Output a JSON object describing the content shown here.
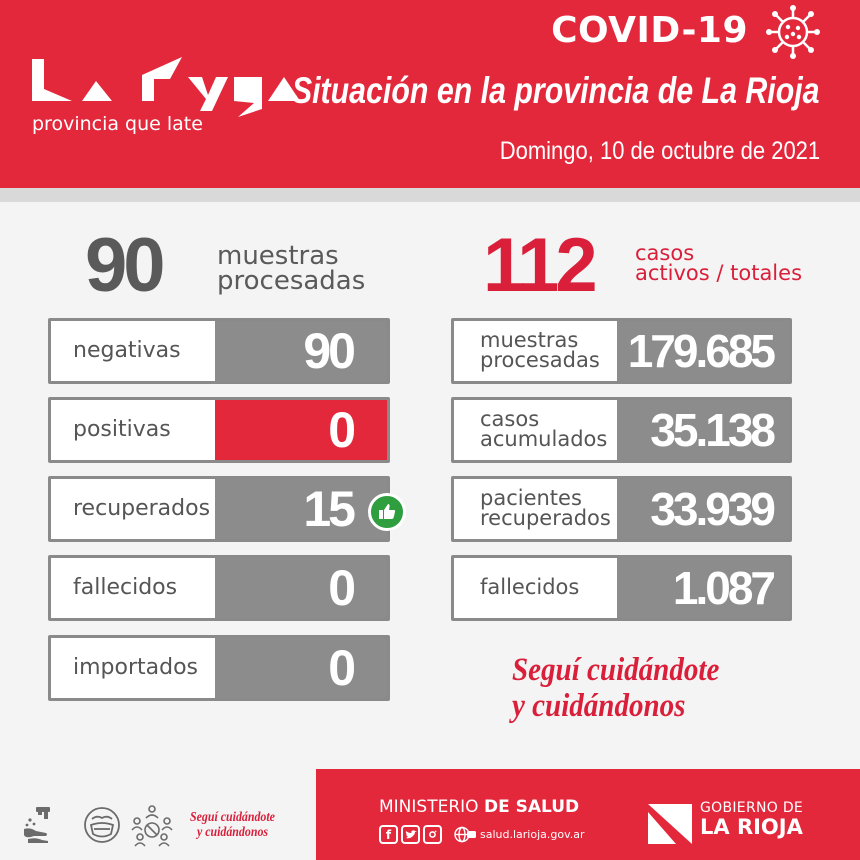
{
  "header": {
    "logo_sub": "provincia que late",
    "covid_title": "COVID-19",
    "situacion": "Situación en la provincia de La Rioja",
    "fecha": "Domingo, 10 de octubre de 2021"
  },
  "summary_left": {
    "value": "90",
    "label_line1": "muestras",
    "label_line2": "procesadas"
  },
  "summary_right": {
    "value": "112",
    "label_line1": "casos",
    "label_line2": "activos / totales"
  },
  "daily": [
    {
      "label": "negativas",
      "value": "90"
    },
    {
      "label": "positivas",
      "value": "0"
    },
    {
      "label": "recuperados",
      "value": "15"
    },
    {
      "label": "fallecidos",
      "value": "0"
    },
    {
      "label": "importados",
      "value": "0"
    }
  ],
  "totals": [
    {
      "label_line1": "muestras",
      "label_line2": "procesadas",
      "value": "179.685"
    },
    {
      "label_line1": "casos",
      "label_line2": "acumulados",
      "value": "35.138"
    },
    {
      "label_line1": "pacientes",
      "label_line2": "recuperados",
      "value": "33.939"
    },
    {
      "label_line1": "fallecidos",
      "label_line2": "",
      "value": "1.087"
    }
  ],
  "slogan": {
    "line1": "Seguí cuidándote",
    "line2": "y cuidándonos"
  },
  "footer": {
    "ministerio_prefix": "MINISTERIO",
    "ministerio_bold": "DE SALUD",
    "website": "salud.larioja.gov.ar",
    "gob_top": "GOBIERNO DE",
    "gob_bottom": "LA RIOJA",
    "small_slogan_line1": "Seguí cuidándote",
    "small_slogan_line2": "y cuidándonos"
  },
  "colors": {
    "brand_red": "#e3283c",
    "text_red": "#d91f3a",
    "gray_box": "#8c8c8c",
    "text_gray": "#5a5a5a",
    "thumb_green": "#2e9e3f"
  }
}
